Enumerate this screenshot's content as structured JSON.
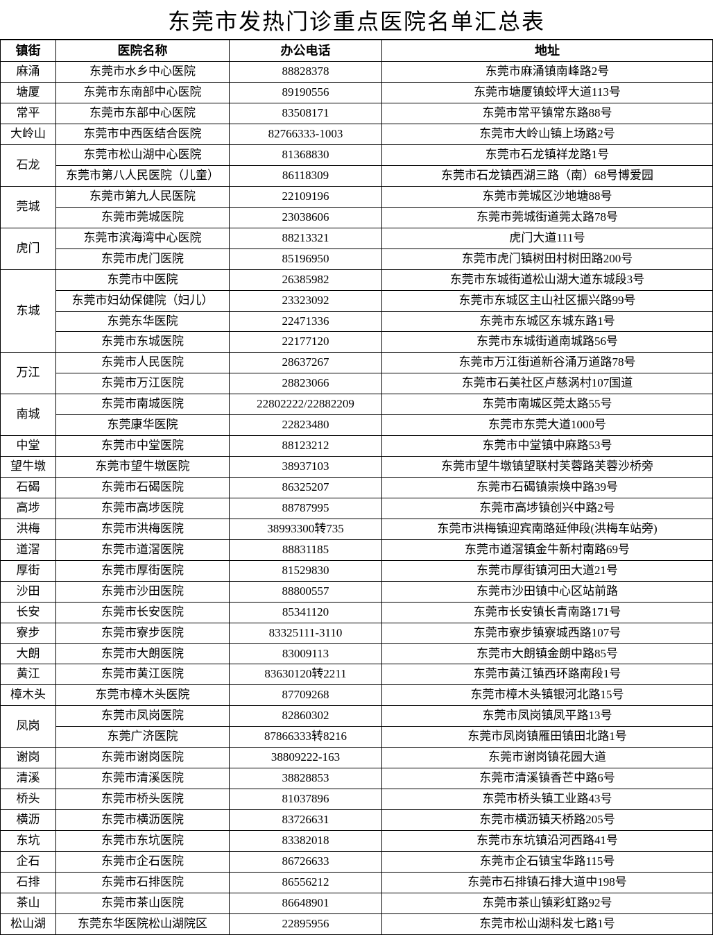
{
  "title": "东莞市发热门诊重点医院名单汇总表",
  "columns": [
    "镇街",
    "医院名称",
    "办公电话",
    "地址"
  ],
  "groups": [
    {
      "town": "麻涌",
      "rows": [
        {
          "name": "东莞市水乡中心医院",
          "phone": "88828378",
          "addr": "东莞市麻涌镇南峰路2号"
        }
      ]
    },
    {
      "town": "塘厦",
      "rows": [
        {
          "name": "东莞市东南部中心医院",
          "phone": "89190556",
          "addr": "东莞市塘厦镇蛟坪大道113号"
        }
      ]
    },
    {
      "town": "常平",
      "rows": [
        {
          "name": "东莞市东部中心医院",
          "phone": "83508171",
          "addr": "东莞市常平镇常东路88号"
        }
      ]
    },
    {
      "town": "大岭山",
      "rows": [
        {
          "name": "东莞市中西医结合医院",
          "phone": "82766333-1003",
          "addr": "东莞市大岭山镇上场路2号"
        }
      ]
    },
    {
      "town": "石龙",
      "rows": [
        {
          "name": "东莞市松山湖中心医院",
          "phone": "81368830",
          "addr": "东莞市石龙镇祥龙路1号"
        },
        {
          "name": "东莞市第八人民医院（儿童）",
          "phone": "86118309",
          "addr": "东莞市石龙镇西湖三路（南）68号博爱园"
        }
      ]
    },
    {
      "town": "莞城",
      "rows": [
        {
          "name": "东莞市第九人民医院",
          "phone": "22109196",
          "addr": "东莞市莞城区沙地塘88号"
        },
        {
          "name": "东莞市莞城医院",
          "phone": "23038606",
          "addr": "东莞市莞城街道莞太路78号"
        }
      ]
    },
    {
      "town": "虎门",
      "rows": [
        {
          "name": "东莞市滨海湾中心医院",
          "phone": "88213321",
          "addr": "虎门大道111号"
        },
        {
          "name": "东莞市虎门医院",
          "phone": "85196950",
          "addr": "东莞市虎门镇树田村树田路200号"
        }
      ]
    },
    {
      "town": "东城",
      "rows": [
        {
          "name": "东莞市中医院",
          "phone": "26385982",
          "addr": "东莞市东城街道松山湖大道东城段3号"
        },
        {
          "name": "东莞市妇幼保健院（妇儿）",
          "phone": "23323092",
          "addr": "东莞市东城区主山社区振兴路99号"
        },
        {
          "name": "东莞东华医院",
          "phone": "22471336",
          "addr": "东莞市东城区东城东路1号"
        },
        {
          "name": "东莞市东城医院",
          "phone": "22177120",
          "addr": "东莞市东城街道南城路56号"
        }
      ]
    },
    {
      "town": "万江",
      "rows": [
        {
          "name": "东莞市人民医院",
          "phone": "28637267",
          "addr": "东莞市万江街道新谷涌万道路78号"
        },
        {
          "name": "东莞市万江医院",
          "phone": "28823066",
          "addr": "东莞市石美社区卢慈涡村107国道"
        }
      ]
    },
    {
      "town": "南城",
      "rows": [
        {
          "name": "东莞市南城医院",
          "phone": "22802222/22882209",
          "addr": "东莞市南城区莞太路55号"
        },
        {
          "name": "东莞康华医院",
          "phone": "22823480",
          "addr": "东莞市东莞大道1000号"
        }
      ]
    },
    {
      "town": "中堂",
      "rows": [
        {
          "name": "东莞市中堂医院",
          "phone": "88123212",
          "addr": "东莞市中堂镇中麻路53号"
        }
      ]
    },
    {
      "town": "望牛墩",
      "rows": [
        {
          "name": "东莞市望牛墩医院",
          "phone": "38937103",
          "addr": "东莞市望牛墩镇望联村芙蓉路芙蓉沙桥旁"
        }
      ]
    },
    {
      "town": "石碣",
      "rows": [
        {
          "name": "东莞市石碣医院",
          "phone": "86325207",
          "addr": "东莞市石碣镇崇焕中路39号"
        }
      ]
    },
    {
      "town": "高埗",
      "rows": [
        {
          "name": "东莞市高埗医院",
          "phone": "88787995",
          "addr": "东莞市高埗镇创兴中路2号"
        }
      ]
    },
    {
      "town": "洪梅",
      "rows": [
        {
          "name": "东莞市洪梅医院",
          "phone": "38993300转735",
          "addr": "东莞市洪梅镇迎宾南路延伸段(洪梅车站旁)"
        }
      ]
    },
    {
      "town": "道滘",
      "rows": [
        {
          "name": "东莞市道滘医院",
          "phone": "88831185",
          "addr": "东莞市道滘镇金牛新村南路69号"
        }
      ]
    },
    {
      "town": "厚街",
      "rows": [
        {
          "name": "东莞市厚街医院",
          "phone": "81529830",
          "addr": "东莞市厚街镇河田大道21号"
        }
      ]
    },
    {
      "town": "沙田",
      "rows": [
        {
          "name": "东莞市沙田医院",
          "phone": "88800557",
          "addr": "东莞市沙田镇中心区站前路"
        }
      ]
    },
    {
      "town": "长安",
      "rows": [
        {
          "name": "东莞市长安医院",
          "phone": "85341120",
          "addr": "东莞市长安镇长青南路171号"
        }
      ]
    },
    {
      "town": "寮步",
      "rows": [
        {
          "name": "东莞市寮步医院",
          "phone": "83325111-3110",
          "addr": "东莞市寮步镇寮城西路107号"
        }
      ]
    },
    {
      "town": "大朗",
      "rows": [
        {
          "name": "东莞市大朗医院",
          "phone": "83009113",
          "addr": "东莞市大朗镇金朗中路85号"
        }
      ]
    },
    {
      "town": "黄江",
      "rows": [
        {
          "name": "东莞市黄江医院",
          "phone": "83630120转2211",
          "addr": "东莞市黄江镇西环路南段1号"
        }
      ]
    },
    {
      "town": "樟木头",
      "rows": [
        {
          "name": "东莞市樟木头医院",
          "phone": "87709268",
          "addr": "东莞市樟木头镇银河北路15号"
        }
      ]
    },
    {
      "town": "凤岗",
      "rows": [
        {
          "name": "东莞市凤岗医院",
          "phone": "82860302",
          "addr": "东莞市凤岗镇凤平路13号"
        },
        {
          "name": "东莞广济医院",
          "phone": "87866333转8216",
          "addr": "东莞市凤岗镇雁田镇田北路1号"
        }
      ]
    },
    {
      "town": "谢岗",
      "rows": [
        {
          "name": "东莞市谢岗医院",
          "phone": "38809222-163",
          "addr": "东莞市谢岗镇花园大道"
        }
      ]
    },
    {
      "town": "清溪",
      "rows": [
        {
          "name": "东莞市清溪医院",
          "phone": "38828853",
          "addr": "东莞市清溪镇香芒中路6号"
        }
      ]
    },
    {
      "town": "桥头",
      "rows": [
        {
          "name": "东莞市桥头医院",
          "phone": "81037896",
          "addr": "东莞市桥头镇工业路43号"
        }
      ]
    },
    {
      "town": "横沥",
      "rows": [
        {
          "name": "东莞市横沥医院",
          "phone": "83726631",
          "addr": "东莞市横沥镇天桥路205号"
        }
      ]
    },
    {
      "town": "东坑",
      "rows": [
        {
          "name": "东莞市东坑医院",
          "phone": "83382018",
          "addr": "东莞市东坑镇沿河西路41号"
        }
      ]
    },
    {
      "town": "企石",
      "rows": [
        {
          "name": "东莞市企石医院",
          "phone": "86726633",
          "addr": "东莞市企石镇宝华路115号"
        }
      ]
    },
    {
      "town": "石排",
      "rows": [
        {
          "name": "东莞市石排医院",
          "phone": "86556212",
          "addr": "东莞市石排镇石排大道中198号"
        }
      ]
    },
    {
      "town": "茶山",
      "rows": [
        {
          "name": "东莞市茶山医院",
          "phone": "86648901",
          "addr": "东莞市茶山镇彩虹路92号"
        }
      ]
    },
    {
      "town": "松山湖",
      "rows": [
        {
          "name": "东莞东华医院松山湖院区",
          "phone": "22895956",
          "addr": "东莞市松山湖科发七路1号"
        }
      ]
    }
  ]
}
